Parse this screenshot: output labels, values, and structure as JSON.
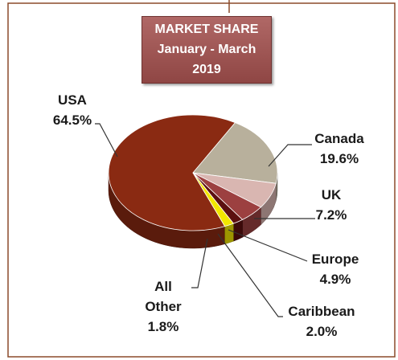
{
  "chart_data": {
    "type": "pie3d",
    "title": "MARKET SHARE",
    "subtitle": "January - March 2019",
    "categories": [
      "USA",
      "Canada",
      "UK",
      "Europe",
      "Caribbean",
      "All Other"
    ],
    "values": [
      64.5,
      19.6,
      7.2,
      4.9,
      2.0,
      1.8
    ],
    "value_labels": [
      "64.5%",
      "19.6%",
      "7.2%",
      "4.9%",
      "2.0%",
      "1.8%"
    ],
    "colors": [
      "#8a2a12",
      "#b8b09c",
      "#d9b6b1",
      "#9c4040",
      "#5c1010",
      "#f2e600"
    ]
  }
}
